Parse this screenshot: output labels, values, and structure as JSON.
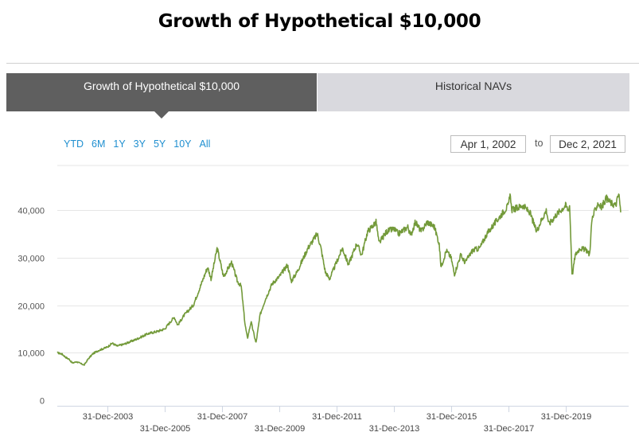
{
  "title": "Growth of Hypothetical $10,000",
  "tabs": [
    {
      "label": "Growth of Hypothetical $10,000",
      "active": true
    },
    {
      "label": "Historical NAVs",
      "active": false
    }
  ],
  "range_buttons": [
    "YTD",
    "6M",
    "1Y",
    "3Y",
    "5Y",
    "10Y",
    "All"
  ],
  "date_range": {
    "from": "Apr 1, 2002",
    "separator": "to",
    "to": "Dec 2, 2021"
  },
  "colors": {
    "line": "#739a3a",
    "tab_active": "#5f5f5f",
    "tab_inactive": "#d9d9de",
    "link": "#1f8fd0"
  },
  "chart_data": {
    "type": "line",
    "title": "",
    "xlabel": "",
    "ylabel": "",
    "ylim": [
      0,
      45000
    ],
    "y_ticks": [
      {
        "value": 0,
        "label": "0"
      },
      {
        "value": 10000,
        "label": "10,000"
      },
      {
        "value": 20000,
        "label": "20,000"
      },
      {
        "value": 30000,
        "label": "30,000"
      },
      {
        "value": 40000,
        "label": "40,000"
      }
    ],
    "x_ticks": [
      {
        "date": "2003-12-31",
        "label": "31-Dec-2003",
        "row": 0
      },
      {
        "date": "2005-12-31",
        "label": "31-Dec-2005",
        "row": 1
      },
      {
        "date": "2007-12-31",
        "label": "31-Dec-2007",
        "row": 0
      },
      {
        "date": "2009-12-31",
        "label": "31-Dec-2009",
        "row": 1
      },
      {
        "date": "2011-12-31",
        "label": "31-Dec-2011",
        "row": 0
      },
      {
        "date": "2013-12-31",
        "label": "31-Dec-2013",
        "row": 1
      },
      {
        "date": "2015-12-31",
        "label": "31-Dec-2015",
        "row": 0
      },
      {
        "date": "2017-12-31",
        "label": "31-Dec-2017",
        "row": 1
      },
      {
        "date": "2019-12-31",
        "label": "31-Dec-2019",
        "row": 0
      }
    ],
    "grid": true,
    "series": [
      {
        "color": "#739a3a",
        "points": [
          [
            "2002-04-01",
            10000
          ],
          [
            "2002-06-01",
            9700
          ],
          [
            "2002-07-20",
            9000
          ],
          [
            "2002-09-01",
            8600
          ],
          [
            "2002-10-10",
            7800
          ],
          [
            "2002-12-01",
            8100
          ],
          [
            "2003-03-10",
            7400
          ],
          [
            "2003-05-01",
            8700
          ],
          [
            "2003-07-01",
            9800
          ],
          [
            "2003-09-01",
            10400
          ],
          [
            "2003-12-31",
            11200
          ],
          [
            "2004-03-01",
            12000
          ],
          [
            "2004-05-01",
            11400
          ],
          [
            "2004-08-01",
            11800
          ],
          [
            "2004-12-31",
            12800
          ],
          [
            "2005-06-01",
            14000
          ],
          [
            "2005-10-01",
            14500
          ],
          [
            "2005-12-31",
            15000
          ],
          [
            "2006-05-01",
            17500
          ],
          [
            "2006-06-15",
            15800
          ],
          [
            "2006-09-01",
            17800
          ],
          [
            "2006-12-31",
            20000
          ],
          [
            "2007-04-01",
            24000
          ],
          [
            "2007-07-01",
            28000
          ],
          [
            "2007-08-15",
            25500
          ],
          [
            "2007-10-31",
            32000
          ],
          [
            "2008-01-20",
            26000
          ],
          [
            "2008-05-01",
            29000
          ],
          [
            "2008-07-15",
            25000
          ],
          [
            "2008-09-01",
            24000
          ],
          [
            "2008-10-20",
            16000
          ],
          [
            "2008-11-20",
            13000
          ],
          [
            "2009-01-05",
            16500
          ],
          [
            "2009-03-09",
            12000
          ],
          [
            "2009-05-01",
            18000
          ],
          [
            "2009-07-01",
            21000
          ],
          [
            "2009-10-01",
            24500
          ],
          [
            "2009-12-31",
            26000
          ],
          [
            "2010-04-15",
            28500
          ],
          [
            "2010-06-01",
            25000
          ],
          [
            "2010-08-15",
            27000
          ],
          [
            "2010-12-31",
            32000
          ],
          [
            "2011-04-30",
            35000
          ],
          [
            "2011-06-15",
            32000
          ],
          [
            "2011-08-10",
            27000
          ],
          [
            "2011-10-03",
            25500
          ],
          [
            "2011-12-31",
            29000
          ],
          [
            "2012-03-15",
            32000
          ],
          [
            "2012-05-31",
            28500
          ],
          [
            "2012-09-15",
            33000
          ],
          [
            "2012-11-15",
            30500
          ],
          [
            "2013-01-31",
            35500
          ],
          [
            "2013-05-20",
            37500
          ],
          [
            "2013-06-24",
            33000
          ],
          [
            "2013-10-01",
            35500
          ],
          [
            "2013-12-31",
            36000
          ],
          [
            "2014-03-01",
            35000
          ],
          [
            "2014-06-30",
            36500
          ],
          [
            "2014-08-01",
            34500
          ],
          [
            "2014-09-30",
            37500
          ],
          [
            "2014-12-15",
            35500
          ],
          [
            "2015-03-01",
            37500
          ],
          [
            "2015-05-31",
            36500
          ],
          [
            "2015-07-31",
            33000
          ],
          [
            "2015-08-25",
            28000
          ],
          [
            "2015-10-31",
            31500
          ],
          [
            "2015-12-31",
            30000
          ],
          [
            "2016-02-11",
            26500
          ],
          [
            "2016-04-30",
            30500
          ],
          [
            "2016-06-27",
            29000
          ],
          [
            "2016-09-30",
            31500
          ],
          [
            "2016-12-31",
            32000
          ],
          [
            "2017-03-31",
            35000
          ],
          [
            "2017-06-30",
            37000
          ],
          [
            "2017-09-30",
            39000
          ],
          [
            "2017-12-31",
            41000
          ],
          [
            "2018-01-26",
            43500
          ],
          [
            "2018-02-09",
            40000
          ],
          [
            "2018-04-30",
            40500
          ],
          [
            "2018-06-30",
            41000
          ],
          [
            "2018-09-30",
            39500
          ],
          [
            "2018-12-24",
            35500
          ],
          [
            "2019-02-28",
            38000
          ],
          [
            "2019-04-30",
            40000
          ],
          [
            "2019-05-31",
            37000
          ],
          [
            "2019-08-31",
            39000
          ],
          [
            "2019-12-31",
            41000
          ],
          [
            "2020-01-31",
            40000
          ],
          [
            "2020-02-20",
            41000
          ],
          [
            "2020-03-23",
            26000
          ],
          [
            "2020-04-30",
            30500
          ],
          [
            "2020-06-30",
            32000
          ],
          [
            "2020-09-30",
            31500
          ],
          [
            "2020-10-31",
            30500
          ],
          [
            "2020-11-30",
            38000
          ],
          [
            "2020-12-31",
            39500
          ],
          [
            "2021-02-15",
            41500
          ],
          [
            "2021-03-31",
            40500
          ],
          [
            "2021-05-31",
            42500
          ],
          [
            "2021-07-31",
            41500
          ],
          [
            "2021-09-30",
            41000
          ],
          [
            "2021-11-08",
            43500
          ],
          [
            "2021-12-02",
            39500
          ]
        ]
      }
    ]
  }
}
